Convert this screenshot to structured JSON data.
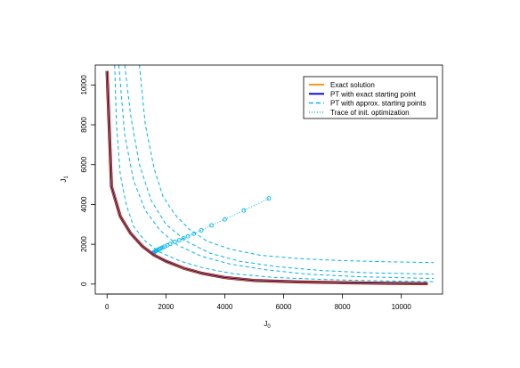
{
  "chart_data": {
    "type": "line",
    "title": "",
    "xlabel": "J",
    "xlabel_sub": "0",
    "ylabel": "J",
    "ylabel_sub": "1",
    "xlim": [
      -400,
      11400
    ],
    "ylim": [
      -500,
      11000
    ],
    "xticks": [
      0,
      2000,
      4000,
      6000,
      8000,
      10000
    ],
    "yticks": [
      0,
      2000,
      4000,
      6000,
      8000,
      10000
    ],
    "grid": false,
    "legend_position": "top-right",
    "colors": {
      "exact": "#ff8c00",
      "exact_start": "#0000cd",
      "approx": "#00b2ee",
      "trace": "#00b2ee",
      "outline": "#8b0000"
    },
    "legend": [
      {
        "label": "Exact solution",
        "style": "solid",
        "color": "#ff8c00"
      },
      {
        "label": "PT with exact starting point",
        "style": "solid",
        "color": "#0000cd"
      },
      {
        "label": "PT with approx. starting points",
        "style": "dashed",
        "color": "#00b2ee"
      },
      {
        "label": "Trace of init. optimization",
        "style": "dotted",
        "color": "#00b2ee"
      }
    ],
    "series": [
      {
        "name": "Exact solution",
        "role": "exact",
        "x": [
          0,
          150,
          450,
          800,
          1200,
          1600,
          2000,
          2600,
          3200,
          4000,
          5000,
          6500,
          8000,
          9500,
          10900
        ],
        "y": [
          10700,
          4900,
          3400,
          2550,
          1900,
          1450,
          1150,
          800,
          550,
          330,
          180,
          110,
          70,
          40,
          20
        ]
      },
      {
        "name": "PT with exact starting point",
        "role": "exact_start",
        "x": [
          0,
          150,
          450,
          800,
          1200,
          1600,
          2000,
          2600,
          3200,
          4000,
          5000,
          6500,
          8000,
          9500,
          10900
        ],
        "y": [
          10700,
          4900,
          3400,
          2550,
          1900,
          1450,
          1150,
          800,
          550,
          330,
          180,
          110,
          70,
          40,
          20
        ]
      },
      {
        "name": "PT with approx. starting points",
        "role": "approx",
        "x": [
          260,
          320,
          450,
          650,
          900,
          1300,
          1800,
          2500,
          3300,
          4300,
          5600,
          7200,
          9000,
          11100
        ],
        "y": [
          11000,
          8000,
          5500,
          4000,
          2900,
          2150,
          1600,
          1150,
          800,
          520,
          340,
          240,
          170,
          120
        ]
      },
      {
        "name": "PT with approx. starting points",
        "role": "approx",
        "x": [
          400,
          600,
          900,
          1300,
          1800,
          2400,
          3200,
          4200,
          5400,
          6800,
          8400,
          11100
        ],
        "y": [
          11000,
          7500,
          5200,
          3700,
          2700,
          1950,
          1400,
          1000,
          720,
          500,
          380,
          280
        ]
      },
      {
        "name": "PT with approx. starting points",
        "role": "approx",
        "x": [
          600,
          800,
          1100,
          1500,
          2000,
          2700,
          3500,
          4500,
          5800,
          7300,
          9000,
          11100
        ],
        "y": [
          11000,
          8500,
          6000,
          4200,
          3000,
          2150,
          1550,
          1150,
          870,
          680,
          560,
          500
        ]
      },
      {
        "name": "PT with approx. starting points",
        "role": "approx",
        "x": [
          1100,
          1300,
          1600,
          1900,
          2300,
          2800,
          3400,
          4200,
          5200,
          6500,
          8000,
          9500,
          11100
        ],
        "y": [
          11000,
          8000,
          5800,
          4400,
          3500,
          2750,
          2150,
          1750,
          1450,
          1280,
          1180,
          1120,
          1080
        ]
      },
      {
        "name": "Trace of init. optimization",
        "role": "trace",
        "x": [
          5500,
          4650,
          4000,
          3550,
          3200,
          2950,
          2750,
          2600,
          2450,
          2300,
          2150,
          2050,
          1950,
          1880,
          1820,
          1770,
          1720,
          1680,
          1650,
          1620,
          1590,
          1570,
          1550
        ],
        "y": [
          4300,
          3700,
          3250,
          2950,
          2700,
          2530,
          2400,
          2300,
          2200,
          2120,
          2020,
          1950,
          1880,
          1830,
          1790,
          1750,
          1710,
          1680,
          1650,
          1620,
          1590,
          1570,
          1550
        ]
      }
    ]
  }
}
